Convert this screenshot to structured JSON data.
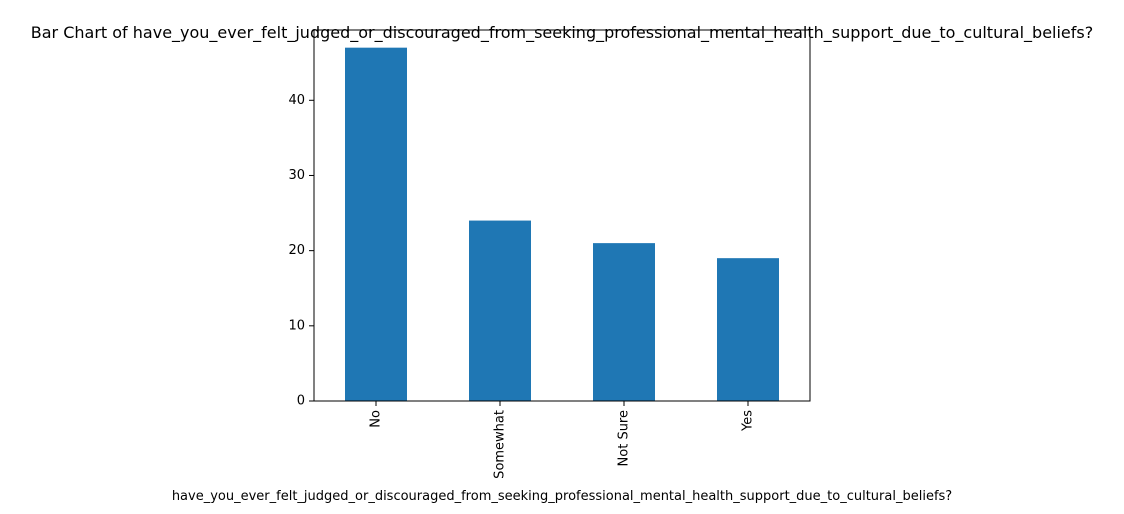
{
  "chart_data": {
    "type": "bar",
    "title": "Bar Chart of have_you_ever_felt_judged_or_discouraged_from_seeking_professional_mental_health_support_due_to_cultural_beliefs?",
    "xlabel": "have_you_ever_felt_judged_or_discouraged_from_seeking_professional_mental_health_support_due_to_cultural_beliefs?",
    "ylabel": "",
    "categories": [
      "No",
      "Somewhat",
      "Not Sure",
      "Yes"
    ],
    "values": [
      47,
      24,
      21,
      19
    ],
    "ylim": [
      0,
      49.35
    ],
    "yticks": [
      0,
      10,
      20,
      30,
      40
    ],
    "bar_color": "#1f77b4",
    "grid": false,
    "legend": "none"
  }
}
